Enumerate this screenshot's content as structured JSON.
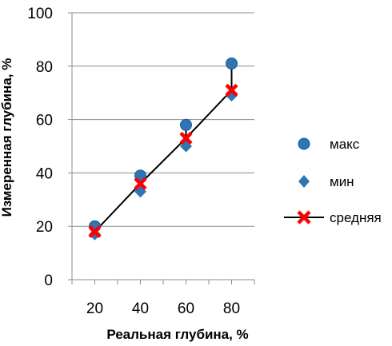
{
  "chart_data": {
    "type": "scatter",
    "xlabel": "Реальная глубина, %",
    "ylabel": "Измеренная глубина, %",
    "xlim": [
      10,
      90
    ],
    "ylim": [
      0,
      100
    ],
    "x_ticks": [
      20,
      40,
      60,
      80
    ],
    "y_ticks": [
      0,
      20,
      40,
      60,
      80,
      100
    ],
    "grid": "horizontal",
    "legend_position": "right",
    "x": [
      20,
      40,
      60,
      80
    ],
    "series": [
      {
        "name": "макс",
        "marker": "circle",
        "color": "#2E75B6",
        "values": [
          20,
          39,
          58,
          81
        ]
      },
      {
        "name": "мин",
        "marker": "diamond",
        "color": "#2E75B6",
        "values": [
          17,
          33,
          50,
          69
        ]
      },
      {
        "name": "средняя",
        "marker": "x",
        "color": "#FF0000",
        "line_color": "#000000",
        "values": [
          18,
          36,
          53,
          71
        ]
      }
    ]
  }
}
